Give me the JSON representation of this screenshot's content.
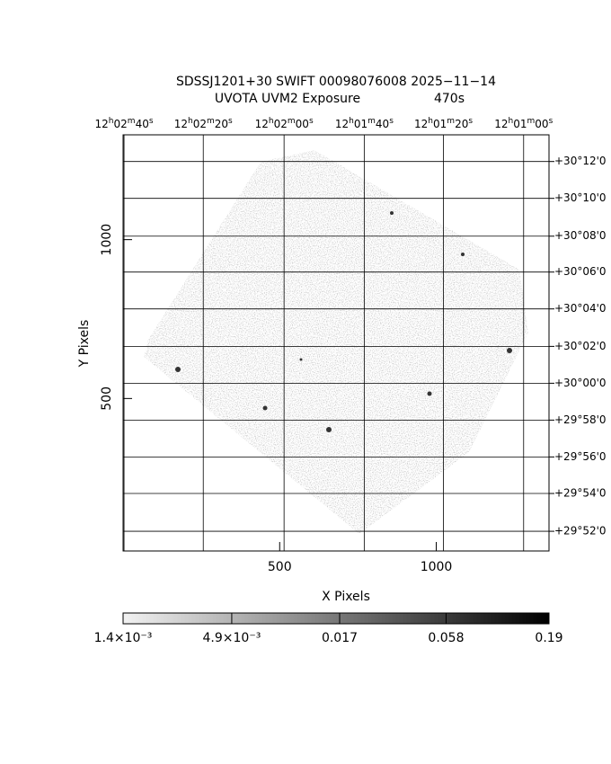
{
  "chart_data": {
    "type": "image",
    "title": "SDSSJ1201+30 SWIFT 00098076008 2025−11−14",
    "subtitle": "UVOTA UVM2 Exposure",
    "exposure": "470s",
    "xlabel": "X Pixels",
    "ylabel": "Y Pixels",
    "xlim": [
      0,
      1360
    ],
    "ylim": [
      20,
      1330
    ],
    "xticks": [
      500,
      1000
    ],
    "yticks": [
      500,
      1000
    ],
    "grid": true,
    "ra_ticks": [
      {
        "value": 3,
        "label": "12h02m40s"
      },
      {
        "value": 256,
        "label": "12h02m20s"
      },
      {
        "value": 514,
        "label": "12h02m00s"
      },
      {
        "value": 770,
        "label": "12h01m40s"
      },
      {
        "value": 1023,
        "label": "12h01m20s"
      },
      {
        "value": 1279,
        "label": "12h01m00s"
      }
    ],
    "dec_ticks": [
      {
        "value": 1246,
        "label": "+30°12'0"
      },
      {
        "value": 1130,
        "label": "+30°10'0"
      },
      {
        "value": 1011,
        "label": "+30°08'0"
      },
      {
        "value": 898,
        "label": "+30°06'0"
      },
      {
        "value": 782,
        "label": "+30°04'0"
      },
      {
        "value": 664,
        "label": "+30°02'0"
      },
      {
        "value": 548,
        "label": "+30°00'0"
      },
      {
        "value": 432,
        "label": "+29°58'0"
      },
      {
        "value": 316,
        "label": "+29°56'0"
      },
      {
        "value": 201,
        "label": "+29°54'0"
      },
      {
        "value": 82,
        "label": "+29°52'0"
      }
    ],
    "colorbar": {
      "log": true,
      "lim": [
        0.0014,
        0.19
      ],
      "colors": [
        "#f2f2f2",
        "#000000"
      ],
      "ticks": [
        {
          "value": 0.0014,
          "label": "1.4×10⁻³"
        },
        {
          "value": 0.0049,
          "label": "4.9×10⁻³"
        },
        {
          "value": 0.017,
          "label": "0.017"
        },
        {
          "value": 0.058,
          "label": "0.058"
        },
        {
          "value": 0.19,
          "label": "0.19"
        }
      ]
    }
  }
}
